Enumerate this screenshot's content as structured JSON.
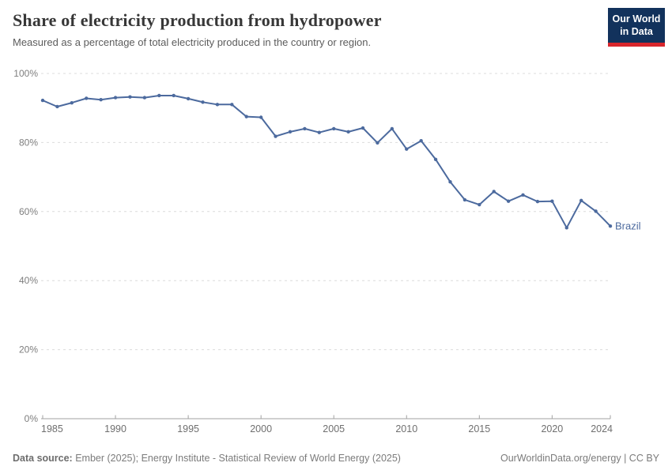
{
  "header": {
    "title": "Share of electricity production from hydropower",
    "subtitle": "Measured as a percentage of total electricity produced in the country or region.",
    "logo": {
      "line1": "Our World",
      "line2": "in Data"
    }
  },
  "chart_data": {
    "type": "line",
    "title": "Share of electricity production from hydropower",
    "subtitle": "Measured as a percentage of total electricity produced in the country or region.",
    "x": [
      1985,
      1986,
      1987,
      1988,
      1989,
      1990,
      1991,
      1992,
      1993,
      1994,
      1995,
      1996,
      1997,
      1998,
      1999,
      2000,
      2001,
      2002,
      2003,
      2004,
      2005,
      2006,
      2007,
      2008,
      2009,
      2010,
      2011,
      2012,
      2013,
      2014,
      2015,
      2016,
      2017,
      2018,
      2019,
      2020,
      2021,
      2022,
      2023,
      2024
    ],
    "series": [
      {
        "name": "Brazil",
        "values": [
          92.2,
          90.4,
          91.5,
          92.8,
          92.4,
          93.0,
          93.2,
          93.0,
          93.6,
          93.6,
          92.7,
          91.7,
          91.0,
          91.0,
          87.5,
          87.3,
          81.8,
          83.1,
          84.0,
          82.9,
          84.0,
          83.1,
          84.2,
          79.9,
          84.0,
          78.1,
          80.5,
          75.1,
          68.6,
          63.4,
          62.0,
          65.8,
          63.0,
          64.8,
          62.9,
          63.0,
          55.3,
          63.2,
          60.1,
          55.8
        ]
      }
    ],
    "end_label": "Brazil",
    "xlabel": "",
    "ylabel": "",
    "ylim": [
      0,
      100
    ],
    "xlim": [
      1985,
      2024
    ],
    "y_ticks": [
      0,
      20,
      40,
      60,
      80,
      100
    ],
    "y_tick_suffix": "%",
    "x_ticks": [
      1985,
      1990,
      1995,
      2000,
      2005,
      2010,
      2015,
      2020,
      2024
    ],
    "grid": "horizontal-dashed",
    "legend_position": "end-of-line"
  },
  "footer": {
    "source_label": "Data source:",
    "source_text": " Ember (2025); Energy Institute - Statistical Review of World Energy (2025)",
    "right_text": "OurWorldinData.org/energy | CC BY"
  },
  "colors": {
    "line": "#4c6a9e",
    "grid": "#dcdcdc",
    "axis": "#a2a2a2",
    "x_tick_label": "#6f6f6f",
    "y_tick_label": "#7e7e7e",
    "title": "#373737",
    "subtitle": "#5c5c5c",
    "footer": "#7b7b7b",
    "logo_bg": "#12325c",
    "logo_accent": "#d8262c"
  }
}
